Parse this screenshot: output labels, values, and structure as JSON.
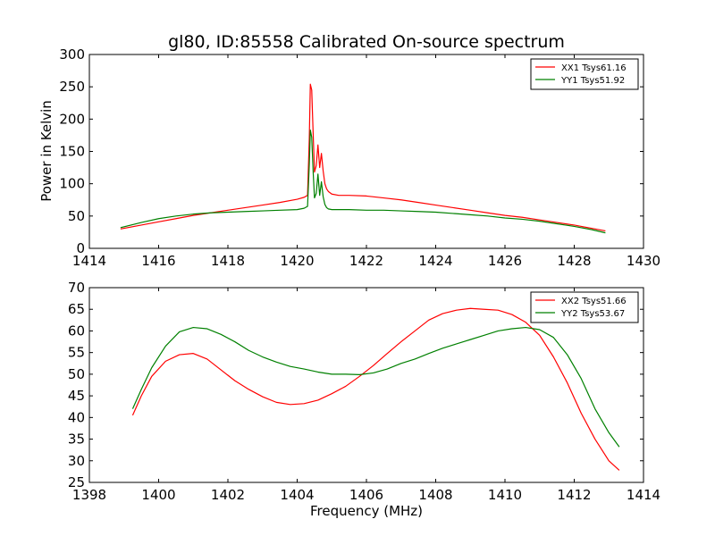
{
  "figure": {
    "title": "gl80, ID:85558 Calibrated On-source spectrum",
    "ylabel": "Power in Kelvin",
    "xlabel": "Frequency (MHz)"
  },
  "chart_data": [
    {
      "type": "line",
      "title": "gl80, ID:85558 Calibrated On-source spectrum",
      "ylabel": "Power in Kelvin",
      "xlabel": "",
      "xlim": [
        1414,
        1430
      ],
      "ylim": [
        0,
        300
      ],
      "xticks": [
        1414,
        1416,
        1418,
        1420,
        1422,
        1424,
        1426,
        1428,
        1430
      ],
      "yticks": [
        0,
        50,
        100,
        150,
        200,
        250,
        300
      ],
      "grid": false,
      "legend": "top-right",
      "series": [
        {
          "name": "XX1 Tsys61.16",
          "color": "#ff0000",
          "x": [
            1414.9,
            1415.5,
            1416.0,
            1416.5,
            1417.0,
            1417.5,
            1418.0,
            1418.5,
            1419.0,
            1419.5,
            1420.0,
            1420.2,
            1420.3,
            1420.35,
            1420.38,
            1420.42,
            1420.46,
            1420.5,
            1420.55,
            1420.6,
            1420.65,
            1420.7,
            1420.75,
            1420.8,
            1420.85,
            1420.9,
            1421.0,
            1421.2,
            1421.5,
            1422.0,
            1422.5,
            1423.0,
            1423.5,
            1424.0,
            1424.5,
            1425.0,
            1425.5,
            1426.0,
            1426.5,
            1427.0,
            1427.5,
            1428.0,
            1428.5,
            1428.9
          ],
          "y": [
            30,
            36,
            41,
            46,
            51,
            55,
            59,
            63,
            67,
            71,
            76,
            79,
            82,
            170,
            254,
            245,
            180,
            118,
            128,
            160,
            125,
            147,
            120,
            100,
            92,
            88,
            84,
            82,
            82,
            81,
            78,
            75,
            71,
            67,
            63,
            59,
            55,
            51,
            48,
            44,
            40,
            36,
            31,
            27
          ]
        },
        {
          "name": "YY1 Tsys51.92",
          "color": "#008000",
          "x": [
            1414.9,
            1415.5,
            1416.0,
            1416.5,
            1417.0,
            1417.5,
            1418.0,
            1418.5,
            1419.0,
            1419.5,
            1420.0,
            1420.2,
            1420.3,
            1420.35,
            1420.38,
            1420.42,
            1420.46,
            1420.5,
            1420.55,
            1420.6,
            1420.65,
            1420.7,
            1420.75,
            1420.8,
            1420.85,
            1420.9,
            1421.0,
            1421.2,
            1421.5,
            1422.0,
            1422.5,
            1423.0,
            1423.5,
            1424.0,
            1424.5,
            1425.0,
            1425.5,
            1426.0,
            1426.5,
            1427.0,
            1427.5,
            1428.0,
            1428.5,
            1428.9
          ],
          "y": [
            32,
            40,
            46,
            50,
            53,
            55,
            56,
            57,
            58,
            59,
            60,
            62,
            65,
            130,
            183,
            172,
            120,
            78,
            85,
            115,
            82,
            103,
            80,
            68,
            63,
            61,
            60,
            60,
            60,
            59,
            59,
            58,
            57,
            56,
            54,
            52,
            50,
            47,
            45,
            42,
            38,
            34,
            29,
            24
          ]
        }
      ]
    },
    {
      "type": "line",
      "title": "",
      "ylabel": "",
      "xlabel": "Frequency (MHz)",
      "xlim": [
        1398,
        1414
      ],
      "ylim": [
        25,
        70
      ],
      "xticks": [
        1398,
        1400,
        1402,
        1404,
        1406,
        1408,
        1410,
        1412,
        1414
      ],
      "yticks": [
        25,
        30,
        35,
        40,
        45,
        50,
        55,
        60,
        65,
        70
      ],
      "grid": false,
      "legend": "top-right",
      "series": [
        {
          "name": "XX2 Tsys51.66",
          "color": "#ff0000",
          "x": [
            1399.25,
            1399.5,
            1399.8,
            1400.2,
            1400.6,
            1401.0,
            1401.4,
            1401.8,
            1402.2,
            1402.6,
            1403.0,
            1403.4,
            1403.8,
            1404.2,
            1404.6,
            1405.0,
            1405.4,
            1405.8,
            1406.2,
            1406.6,
            1407.0,
            1407.4,
            1407.8,
            1408.2,
            1408.6,
            1409.0,
            1409.4,
            1409.8,
            1410.2,
            1410.6,
            1411.0,
            1411.4,
            1411.8,
            1412.2,
            1412.6,
            1413.0,
            1413.3
          ],
          "y": [
            40.5,
            45,
            49.5,
            53,
            54.5,
            54.8,
            53.5,
            51,
            48.5,
            46.5,
            44.8,
            43.5,
            43,
            43.2,
            44,
            45.5,
            47.2,
            49.5,
            52,
            54.8,
            57.5,
            60,
            62.5,
            64,
            64.8,
            65.2,
            65,
            64.8,
            63.8,
            62,
            59,
            54,
            48,
            41,
            35,
            30,
            27.8
          ]
        },
        {
          "name": "YY2 Tsys53.67",
          "color": "#008000",
          "x": [
            1399.25,
            1399.5,
            1399.8,
            1400.2,
            1400.6,
            1401.0,
            1401.4,
            1401.8,
            1402.2,
            1402.6,
            1403.0,
            1403.4,
            1403.8,
            1404.2,
            1404.6,
            1405.0,
            1405.4,
            1405.8,
            1406.2,
            1406.6,
            1407.0,
            1407.4,
            1407.8,
            1408.2,
            1408.6,
            1409.0,
            1409.4,
            1409.8,
            1410.2,
            1410.6,
            1411.0,
            1411.4,
            1411.8,
            1412.2,
            1412.6,
            1413.0,
            1413.3
          ],
          "y": [
            42,
            46.5,
            51.5,
            56.5,
            59.8,
            60.8,
            60.5,
            59.2,
            57.5,
            55.5,
            54,
            52.8,
            51.8,
            51.2,
            50.5,
            50,
            50,
            49.9,
            50.3,
            51.2,
            52.5,
            53.5,
            54.8,
            56,
            57,
            58,
            59,
            60,
            60.5,
            60.8,
            60.3,
            58.5,
            54.5,
            49,
            42,
            36.5,
            33.2
          ]
        }
      ]
    }
  ]
}
